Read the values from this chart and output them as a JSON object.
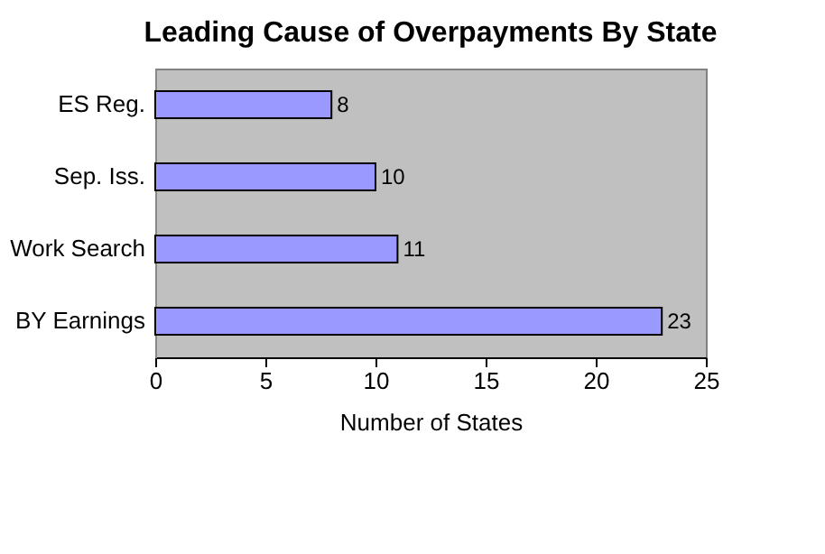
{
  "chart_data": {
    "type": "bar",
    "orientation": "horizontal",
    "title": "Leading Cause of Overpayments By State",
    "xlabel": "Number of States",
    "categories": [
      "ES Reg.",
      "Sep. Iss.",
      "Work Search",
      "BY Earnings"
    ],
    "values": [
      8,
      10,
      11,
      23
    ],
    "color": "#9999ff",
    "xlim": [
      0,
      25
    ],
    "xticks": [
      0,
      5,
      10,
      15,
      20,
      25
    ],
    "grid": false,
    "data_labels": true
  }
}
